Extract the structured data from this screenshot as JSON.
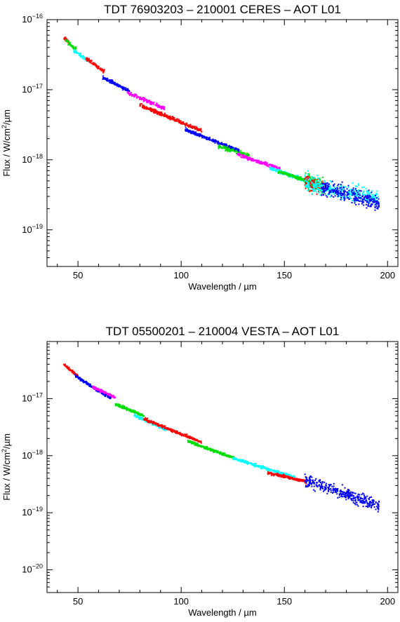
{
  "chart_data": [
    {
      "type": "scatter",
      "title": "TDT 76903203   –   210001 CERES   –   AOT L01",
      "xlabel": "Wavelength / µm",
      "ylabel": "Flux / W/cm²/µm",
      "xlim": [
        35,
        205
      ],
      "ylim": [
        3e-20,
        1e-16
      ],
      "yscale": "log",
      "xticks": [
        50,
        100,
        150,
        200
      ],
      "xtick_labels": [
        "50",
        "100",
        "150",
        "200"
      ],
      "yticks": [
        1e-19,
        1e-18,
        1e-17,
        1e-16
      ],
      "ytick_labels": [
        {
          "mant": "10",
          "exp": "−19"
        },
        {
          "mant": "10",
          "exp": "−18"
        },
        {
          "mant": "10",
          "exp": "−17"
        },
        {
          "mant": "10",
          "exp": "−16"
        }
      ],
      "grid": false,
      "series": [
        {
          "color": "#ff0000",
          "x_range": [
            43,
            46
          ],
          "flux_range": [
            5.6e-17,
            4.6e-17
          ]
        },
        {
          "color": "#00dd00",
          "x_range": [
            44,
            49
          ],
          "flux_range": [
            5e-17,
            3.8e-17
          ]
        },
        {
          "color": "#00ffff",
          "x_range": [
            48,
            55
          ],
          "flux_range": [
            3.6e-17,
            2.6e-17
          ]
        },
        {
          "color": "#ff0000",
          "x_range": [
            54,
            63
          ],
          "flux_range": [
            2.8e-17,
            1.8e-17
          ]
        },
        {
          "color": "#0000ff",
          "x_range": [
            62,
            75
          ],
          "flux_range": [
            1.5e-17,
            9.5e-18
          ]
        },
        {
          "color": "#ff00ff",
          "x_range": [
            74,
            92
          ],
          "flux_range": [
            9e-18,
            5.4e-18
          ]
        },
        {
          "color": "#ff0000",
          "x_range": [
            80,
            110
          ],
          "flux_range": [
            6e-18,
            2.6e-18
          ]
        },
        {
          "color": "#0000ff",
          "x_range": [
            102,
            128
          ],
          "flux_range": [
            2.7e-18,
            1.35e-18
          ]
        },
        {
          "color": "#00dd00",
          "x_range": [
            118,
            133
          ],
          "flux_range": [
            1.55e-18,
            1.15e-18
          ]
        },
        {
          "color": "#ff00ff",
          "x_range": [
            127,
            148
          ],
          "flux_range": [
            1.2e-18,
            7.4e-19
          ]
        },
        {
          "color": "#00ffff",
          "x_range": [
            143,
            170
          ],
          "flux_range": [
            7.6e-19,
            4e-19
          ]
        },
        {
          "color": "#00dd00",
          "x_range": [
            147,
            169
          ],
          "flux_range": [
            6.8e-19,
            4.2e-19
          ]
        },
        {
          "color": "#ff0000",
          "x_range": [
            160,
            170
          ],
          "flux_range": [
            4.8e-19,
            3.9e-19
          ]
        },
        {
          "color": "#00ffff",
          "x_range": [
            160,
            196
          ],
          "flux_range": [
            4.5e-19,
            2.8e-19
          ]
        },
        {
          "color": "#0000ff",
          "x_range": [
            168,
            196
          ],
          "flux_range": [
            4e-19,
            2.4e-19
          ]
        }
      ]
    },
    {
      "type": "scatter",
      "title": "TDT 05500201   –   210004 VESTA   –   AOT L01",
      "xlabel": "Wavelength / µm",
      "ylabel": "Flux / W/cm²/µm",
      "xlim": [
        35,
        205
      ],
      "ylim": [
        4e-21,
        1e-16
      ],
      "yscale": "log",
      "xticks": [
        50,
        100,
        150,
        200
      ],
      "xtick_labels": [
        "50",
        "100",
        "150",
        "200"
      ],
      "yticks": [
        1e-20,
        1e-19,
        1e-18,
        1e-17
      ],
      "ytick_labels": [
        {
          "mant": "10",
          "exp": "−20"
        },
        {
          "mant": "10",
          "exp": "−19"
        },
        {
          "mant": "10",
          "exp": "−18"
        },
        {
          "mant": "10",
          "exp": "−17"
        }
      ],
      "grid": false,
      "series": [
        {
          "color": "#ff0000",
          "x_range": [
            43,
            50
          ],
          "flux_range": [
            4e-17,
            2.5e-17
          ]
        },
        {
          "color": "#0000ff",
          "x_range": [
            48,
            66
          ],
          "flux_range": [
            2.6e-17,
            1e-17
          ]
        },
        {
          "color": "#ff00ff",
          "x_range": [
            57,
            68
          ],
          "flux_range": [
            1.6e-17,
            1.05e-17
          ]
        },
        {
          "color": "#00dd00",
          "x_range": [
            68,
            82
          ],
          "flux_range": [
            8e-18,
            5e-18
          ]
        },
        {
          "color": "#00ffff",
          "x_range": [
            77,
            93
          ],
          "flux_range": [
            5.2e-18,
            2.8e-18
          ]
        },
        {
          "color": "#ff0000",
          "x_range": [
            82,
            110
          ],
          "flux_range": [
            4.4e-18,
            1.7e-18
          ]
        },
        {
          "color": "#00dd00",
          "x_range": [
            103,
            126
          ],
          "flux_range": [
            1.8e-18,
            9e-19
          ]
        },
        {
          "color": "#00ffff",
          "x_range": [
            125,
            155
          ],
          "flux_range": [
            9e-19,
            4.2e-19
          ]
        },
        {
          "color": "#ff0000",
          "x_range": [
            142,
            161
          ],
          "flux_range": [
            5e-19,
            3.5e-19
          ]
        },
        {
          "color": "#0000ff",
          "x_range": [
            160,
            196
          ],
          "flux_range": [
            3.8e-19,
            1.3e-19
          ]
        }
      ]
    }
  ]
}
